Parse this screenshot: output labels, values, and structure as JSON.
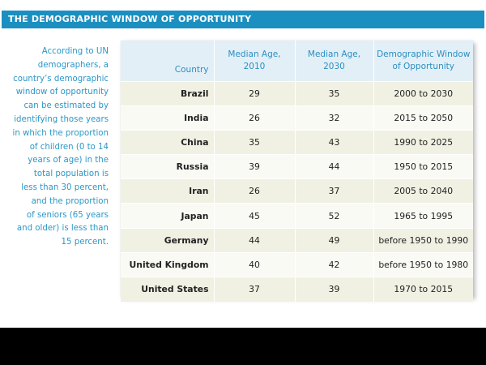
{
  "title": "THE DEMOGRAPHIC WINDOW OF OPPORTUNITY",
  "sidenote_lines": [
    "According to UN",
    "demographers, a",
    "country’s demographic",
    "window of opportunity",
    "can be estimated by",
    "identifying those years",
    "in which the proportion",
    "of children (0 to 14",
    "years of age) in the",
    "total population is",
    "less than 30 percent,",
    "and the proportion",
    "of seniors (65 years",
    "and older) is less than",
    "15 percent."
  ],
  "table": {
    "headers": {
      "country": "Country",
      "median_2010_line1": "Median Age,",
      "median_2010_line2": "2010",
      "median_2030_line1": "Median Age,",
      "median_2030_line2": "2030",
      "window_line1": "Demographic Window",
      "window_line2": "of Opportunity"
    },
    "rows": [
      {
        "country": "Brazil",
        "m2010": "29",
        "m2030": "35",
        "window": "2000 to 2030"
      },
      {
        "country": "India",
        "m2010": "26",
        "m2030": "32",
        "window": "2015 to 2050"
      },
      {
        "country": "China",
        "m2010": "35",
        "m2030": "43",
        "window": "1990 to 2025"
      },
      {
        "country": "Russia",
        "m2010": "39",
        "m2030": "44",
        "window": "1950 to 2015"
      },
      {
        "country": "Iran",
        "m2010": "26",
        "m2030": "37",
        "window": "2005 to 2040"
      },
      {
        "country": "Japan",
        "m2010": "45",
        "m2030": "52",
        "window": "1965 to 1995"
      },
      {
        "country": "Germany",
        "m2010": "44",
        "m2030": "49",
        "window": "before 1950 to 1990"
      },
      {
        "country": "United Kingdom",
        "m2010": "40",
        "m2030": "42",
        "window": "before 1950 to 1980"
      },
      {
        "country": "United States",
        "m2010": "37",
        "m2030": "39",
        "window": "1970 to 2015"
      }
    ]
  }
}
